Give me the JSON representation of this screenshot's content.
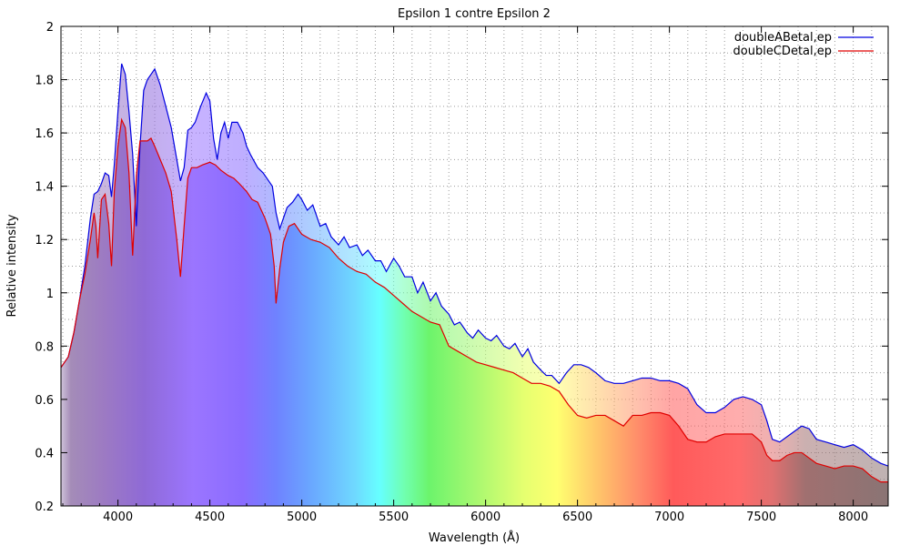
{
  "chart_data": {
    "type": "area",
    "title": "Epsilon 1 contre Epsilon 2",
    "xlabel": "Wavelength (Å)",
    "ylabel": "Relative intensity",
    "xlim": [
      3690,
      8190
    ],
    "ylim": [
      0.2,
      2.0
    ],
    "x_ticks": [
      4000,
      4500,
      5000,
      5500,
      6000,
      6500,
      7000,
      7500,
      8000
    ],
    "y_ticks": [
      0.2,
      0.4,
      0.6,
      0.8,
      1.0,
      1.2,
      1.4,
      1.6,
      1.8,
      2.0
    ],
    "x_tick_labels": [
      "4000",
      "4500",
      "5000",
      "5500",
      "6000",
      "6500",
      "7000",
      "7500",
      "8000"
    ],
    "y_tick_labels": [
      "0.2",
      "0.4",
      "0.6",
      "0.8",
      "1",
      "1.2",
      "1.4",
      "1.6",
      "1.8",
      "2"
    ],
    "grid": true,
    "legend_position": "top-right",
    "background": "visible-spectrum color gradient under the curves",
    "series": [
      {
        "name": "doubleABetal,ep",
        "color": "#0000e0",
        "x": [
          3690,
          3730,
          3760,
          3790,
          3820,
          3850,
          3870,
          3890,
          3910,
          3930,
          3950,
          3965,
          3980,
          4000,
          4020,
          4040,
          4060,
          4080,
          4100,
          4120,
          4140,
          4160,
          4180,
          4200,
          4230,
          4260,
          4290,
          4320,
          4340,
          4360,
          4380,
          4400,
          4420,
          4450,
          4480,
          4500,
          4520,
          4540,
          4560,
          4580,
          4600,
          4620,
          4650,
          4680,
          4700,
          4720,
          4760,
          4790,
          4820,
          4840,
          4860,
          4880,
          4900,
          4920,
          4950,
          4980,
          5000,
          5030,
          5060,
          5100,
          5130,
          5160,
          5200,
          5230,
          5260,
          5300,
          5330,
          5360,
          5400,
          5430,
          5460,
          5500,
          5530,
          5560,
          5600,
          5630,
          5660,
          5700,
          5730,
          5760,
          5800,
          5830,
          5860,
          5900,
          5930,
          5960,
          6000,
          6030,
          6060,
          6100,
          6130,
          6160,
          6200,
          6230,
          6260,
          6300,
          6330,
          6360,
          6400,
          6440,
          6480,
          6520,
          6560,
          6600,
          6650,
          6700,
          6750,
          6800,
          6850,
          6900,
          6950,
          7000,
          7050,
          7100,
          7150,
          7200,
          7250,
          7300,
          7350,
          7400,
          7450,
          7500,
          7530,
          7560,
          7600,
          7640,
          7680,
          7720,
          7760,
          7800,
          7850,
          7900,
          7950,
          8000,
          8050,
          8100,
          8150,
          8190
        ],
        "values": [
          0.72,
          0.76,
          0.85,
          0.97,
          1.1,
          1.28,
          1.37,
          1.38,
          1.41,
          1.45,
          1.44,
          1.36,
          1.48,
          1.68,
          1.86,
          1.82,
          1.68,
          1.52,
          1.25,
          1.55,
          1.76,
          1.8,
          1.82,
          1.84,
          1.78,
          1.7,
          1.62,
          1.5,
          1.42,
          1.47,
          1.61,
          1.62,
          1.64,
          1.7,
          1.75,
          1.72,
          1.58,
          1.5,
          1.6,
          1.64,
          1.58,
          1.64,
          1.64,
          1.6,
          1.55,
          1.52,
          1.47,
          1.45,
          1.42,
          1.4,
          1.3,
          1.24,
          1.28,
          1.32,
          1.34,
          1.37,
          1.35,
          1.31,
          1.33,
          1.25,
          1.26,
          1.21,
          1.18,
          1.21,
          1.17,
          1.18,
          1.14,
          1.16,
          1.12,
          1.12,
          1.08,
          1.13,
          1.1,
          1.06,
          1.06,
          1.0,
          1.04,
          0.97,
          1.0,
          0.95,
          0.92,
          0.88,
          0.89,
          0.85,
          0.83,
          0.86,
          0.83,
          0.82,
          0.84,
          0.8,
          0.79,
          0.81,
          0.76,
          0.79,
          0.74,
          0.71,
          0.69,
          0.69,
          0.66,
          0.7,
          0.73,
          0.73,
          0.72,
          0.7,
          0.67,
          0.66,
          0.66,
          0.67,
          0.68,
          0.68,
          0.67,
          0.67,
          0.66,
          0.64,
          0.58,
          0.55,
          0.55,
          0.57,
          0.6,
          0.61,
          0.6,
          0.58,
          0.52,
          0.45,
          0.44,
          0.46,
          0.48,
          0.5,
          0.49,
          0.45,
          0.44,
          0.43,
          0.42,
          0.43,
          0.41,
          0.38,
          0.36,
          0.35
        ]
      },
      {
        "name": "doubleCDetal,ep",
        "color": "#e00000",
        "x": [
          3690,
          3730,
          3760,
          3790,
          3820,
          3850,
          3870,
          3880,
          3890,
          3910,
          3930,
          3950,
          3965,
          3980,
          4000,
          4020,
          4040,
          4060,
          4080,
          4100,
          4120,
          4140,
          4160,
          4180,
          4200,
          4230,
          4260,
          4290,
          4320,
          4340,
          4360,
          4380,
          4400,
          4430,
          4460,
          4500,
          4530,
          4560,
          4600,
          4630,
          4660,
          4700,
          4730,
          4760,
          4800,
          4830,
          4850,
          4860,
          4880,
          4900,
          4930,
          4960,
          5000,
          5050,
          5100,
          5150,
          5200,
          5250,
          5300,
          5350,
          5400,
          5450,
          5500,
          5550,
          5600,
          5650,
          5700,
          5750,
          5800,
          5850,
          5900,
          5950,
          6000,
          6050,
          6100,
          6150,
          6200,
          6250,
          6300,
          6350,
          6400,
          6450,
          6500,
          6550,
          6600,
          6650,
          6700,
          6750,
          6800,
          6850,
          6900,
          6950,
          7000,
          7050,
          7100,
          7150,
          7200,
          7250,
          7300,
          7350,
          7400,
          7450,
          7500,
          7530,
          7560,
          7600,
          7640,
          7680,
          7720,
          7760,
          7800,
          7850,
          7900,
          7950,
          8000,
          8050,
          8100,
          8150,
          8190
        ],
        "values": [
          0.72,
          0.76,
          0.85,
          0.97,
          1.07,
          1.2,
          1.3,
          1.25,
          1.13,
          1.35,
          1.37,
          1.26,
          1.1,
          1.38,
          1.55,
          1.65,
          1.62,
          1.45,
          1.14,
          1.44,
          1.57,
          1.57,
          1.57,
          1.58,
          1.55,
          1.5,
          1.45,
          1.38,
          1.2,
          1.06,
          1.25,
          1.43,
          1.47,
          1.47,
          1.48,
          1.49,
          1.48,
          1.46,
          1.44,
          1.43,
          1.41,
          1.38,
          1.35,
          1.34,
          1.28,
          1.22,
          1.1,
          0.96,
          1.09,
          1.19,
          1.25,
          1.26,
          1.22,
          1.2,
          1.19,
          1.17,
          1.13,
          1.1,
          1.08,
          1.07,
          1.04,
          1.02,
          0.99,
          0.96,
          0.93,
          0.91,
          0.89,
          0.88,
          0.8,
          0.78,
          0.76,
          0.74,
          0.73,
          0.72,
          0.71,
          0.7,
          0.68,
          0.66,
          0.66,
          0.65,
          0.63,
          0.58,
          0.54,
          0.53,
          0.54,
          0.54,
          0.52,
          0.5,
          0.54,
          0.54,
          0.55,
          0.55,
          0.54,
          0.5,
          0.45,
          0.44,
          0.44,
          0.46,
          0.47,
          0.47,
          0.47,
          0.47,
          0.44,
          0.39,
          0.37,
          0.37,
          0.39,
          0.4,
          0.4,
          0.38,
          0.36,
          0.35,
          0.34,
          0.35,
          0.35,
          0.34,
          0.31,
          0.29,
          0.29
        ]
      }
    ]
  }
}
